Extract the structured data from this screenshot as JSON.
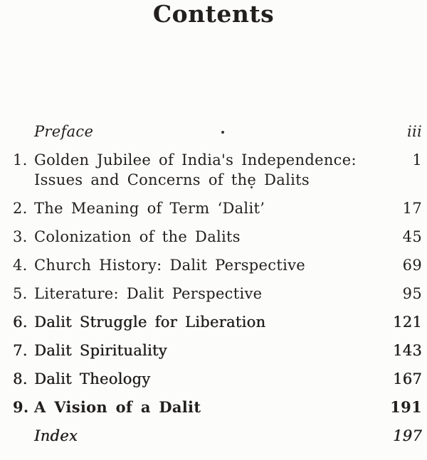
{
  "page": {
    "title": "Contents"
  },
  "toc": {
    "entries": [
      {
        "num": "",
        "title": "Preface",
        "page": "iii",
        "style": "italic"
      },
      {
        "num": "1.",
        "title": "Golden Jubilee of India's Independence:",
        "title_line2": "Issues and Concerns of the Dalits",
        "page": "1",
        "style": "normal"
      },
      {
        "num": "2.",
        "title": "The Meaning of Term ‘Dalit’",
        "page": "17",
        "style": "normal"
      },
      {
        "num": "3.",
        "title": "Colonization of the Dalits",
        "page": "45",
        "style": "normal"
      },
      {
        "num": "4.",
        "title": "Church History: Dalit Perspective",
        "page": "69",
        "style": "normal"
      },
      {
        "num": "5.",
        "title": "Literature: Dalit Perspective",
        "page": "95",
        "style": "normal"
      },
      {
        "num": "6.",
        "title": "Dalit Struggle for Liberation",
        "page": "121",
        "style": "medium"
      },
      {
        "num": "7.",
        "title": "Dalit Spirituality",
        "page": "143",
        "style": "medium"
      },
      {
        "num": "8.",
        "title": "Dalit Theology",
        "page": "167",
        "style": "medium"
      },
      {
        "num": "9.",
        "title": "A Vision of a Dalit",
        "page": "191",
        "style": "bold"
      },
      {
        "num": "",
        "title": "Index",
        "page": "197",
        "style": "medium-italic"
      }
    ]
  }
}
